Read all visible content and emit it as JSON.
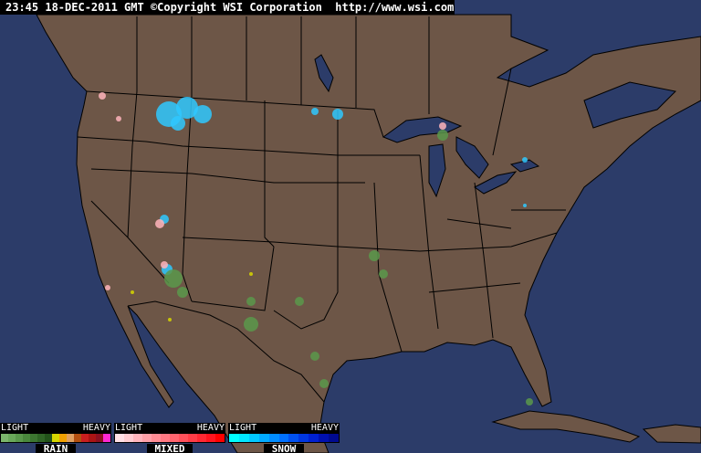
{
  "header": {
    "timestamp": "23:45 18-DEC-2011 GMT",
    "copyright": "©Copyright WSI Corporation",
    "url": "http://www.wsi.com"
  },
  "colors": {
    "ocean": "#2c3c69",
    "land": "#6d5647",
    "borders": "#000000"
  },
  "legend": [
    {
      "name": "RAIN",
      "light": "LIGHT",
      "heavy": "HEAVY",
      "colors": [
        "#7bb56b",
        "#6aa85a",
        "#5a984b",
        "#4a883c",
        "#3c7530",
        "#2f6425",
        "#22521a",
        "#d6d600",
        "#f0a000",
        "#e0a060",
        "#b45010",
        "#c81e1e",
        "#aa1414",
        "#8c1020",
        "#ff28d2"
      ]
    },
    {
      "name": "MIXED",
      "light": "LIGHT",
      "heavy": "HEAVY",
      "colors": [
        "#ffe0e6",
        "#ffccd2",
        "#ffb4bc",
        "#ffa0a8",
        "#ff8c94",
        "#ff7882",
        "#ff646e",
        "#ff505a",
        "#ff3c46",
        "#ff2832",
        "#ff141e",
        "#ff0000"
      ]
    },
    {
      "name": "SNOW",
      "light": "LIGHT",
      "heavy": "HEAVY",
      "colors": [
        "#00ffff",
        "#00e6ff",
        "#00c8ff",
        "#00aaff",
        "#008cff",
        "#0070ff",
        "#0050f0",
        "#0036e0",
        "#0020d0",
        "#0010b0",
        "#000a90"
      ]
    }
  ]
}
